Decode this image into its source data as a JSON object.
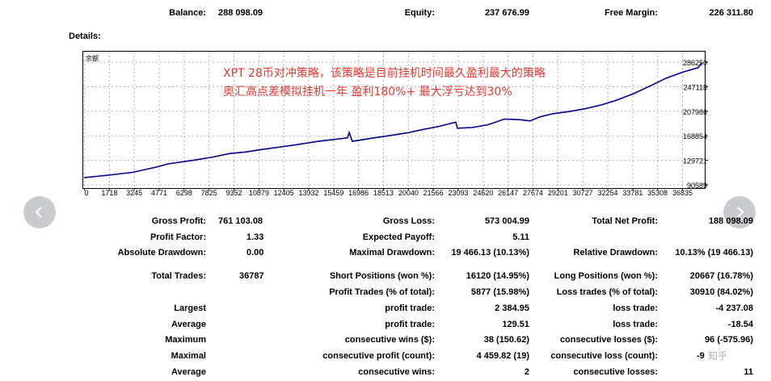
{
  "summary": {
    "balance_label": "Balance:",
    "balance_value": "288 098.09",
    "equity_label": "Equity:",
    "equity_value": "237 676.99",
    "free_margin_label": "Free Margin:",
    "free_margin_value": "226 311.80"
  },
  "details_label": "Details:",
  "chart_data": {
    "type": "line",
    "ylabel": "余额",
    "annotations": [
      "XPT 28币对冲策略，该策略是目前挂机时间最久盈利最大的策略",
      "奥汇高点差模拟挂机一年 盈利180%+ 最大浮亏达到30%"
    ],
    "x_ticks": [
      "0",
      "1718",
      "3245",
      "4771",
      "6298",
      "7825",
      "9352",
      "10879",
      "12405",
      "13932",
      "15459",
      "16986",
      "18513",
      "20040",
      "21566",
      "23093",
      "24620",
      "26147",
      "27674",
      "29201",
      "30727",
      "32254",
      "33781",
      "35308",
      "36835"
    ],
    "y_ticks": [
      "286250",
      "247118",
      "207986",
      "168854",
      "129721",
      "90589"
    ],
    "ylim": [
      90589,
      286250
    ],
    "xlim": [
      0,
      38200
    ],
    "series": [
      {
        "color": "#00008b",
        "points": [
          [
            0,
            102000
          ],
          [
            1500,
            106000
          ],
          [
            3000,
            110500
          ],
          [
            4500,
            119000
          ],
          [
            5200,
            124000
          ],
          [
            6800,
            130000
          ],
          [
            8000,
            135000
          ],
          [
            9000,
            140500
          ],
          [
            10000,
            143000
          ],
          [
            11000,
            147000
          ],
          [
            12000,
            150500
          ],
          [
            13000,
            154000
          ],
          [
            14500,
            160000
          ],
          [
            15500,
            163000
          ],
          [
            16300,
            165500
          ],
          [
            16400,
            174000
          ],
          [
            16600,
            160000
          ],
          [
            17800,
            165000
          ],
          [
            19000,
            169500
          ],
          [
            20000,
            173500
          ],
          [
            21000,
            179000
          ],
          [
            22000,
            184000
          ],
          [
            23000,
            190500
          ],
          [
            23100,
            181000
          ],
          [
            24000,
            182000
          ],
          [
            25000,
            186500
          ],
          [
            26000,
            195500
          ],
          [
            27000,
            194500
          ],
          [
            27600,
            192500
          ],
          [
            28200,
            199000
          ],
          [
            29000,
            204000
          ],
          [
            30000,
            207500
          ],
          [
            31000,
            212000
          ],
          [
            32000,
            218000
          ],
          [
            33000,
            226000
          ],
          [
            34000,
            236000
          ],
          [
            35000,
            248000
          ],
          [
            36000,
            260500
          ],
          [
            37000,
            270000
          ],
          [
            38000,
            277500
          ],
          [
            38200,
            285000
          ]
        ]
      }
    ]
  },
  "stats": {
    "gross_profit": {
      "label": "Gross Profit:",
      "value": "761 103.08"
    },
    "gross_loss": {
      "label": "Gross Loss:",
      "value": "573 004.99"
    },
    "total_net_profit": {
      "label": "Total Net Profit:",
      "value": "188 098.09"
    },
    "profit_factor": {
      "label": "Profit Factor:",
      "value": "1.33"
    },
    "expected_payoff": {
      "label": "Expected Payoff:",
      "value": "5.11"
    },
    "absolute_drawdown": {
      "label": "Absolute Drawdown:",
      "value": "0.00"
    },
    "maximal_drawdown": {
      "label": "Maximal Drawdown:",
      "value": "19 466.13 (10.13%)"
    },
    "relative_drawdown": {
      "label": "Relative Drawdown:",
      "value": "10.13% (19 466.13)"
    },
    "total_trades": {
      "label": "Total Trades:",
      "value": "36787"
    },
    "short_positions": {
      "label": "Short Positions (won %):",
      "value": "16120 (14.95%)"
    },
    "long_positions": {
      "label": "Long Positions (won %):",
      "value": "20667 (16.78%)"
    },
    "profit_trades": {
      "label": "Profit Trades (% of total):",
      "value": "5877 (15.98%)"
    },
    "loss_trades": {
      "label": "Loss trades (% of total):",
      "value": "30910 (84.02%)"
    },
    "largest": {
      "label": "Largest",
      "profit_label": "profit trade:",
      "profit_value": "2 384.95",
      "loss_label": "loss trade:",
      "loss_value": "-4 237.08"
    },
    "average": {
      "label": "Average",
      "profit_label": "profit trade:",
      "profit_value": "129.51",
      "loss_label": "loss trade:",
      "loss_value": "-18.54"
    },
    "maximum": {
      "label": "Maximum",
      "wins_label": "consecutive wins ($):",
      "wins_value": "38 (150.62)",
      "losses_label": "consecutive losses ($):",
      "losses_value": "96 (-575.96)"
    },
    "maximal": {
      "label": "Maximal",
      "profit_label": "consecutive profit (count):",
      "profit_value": "4 459.82 (19)",
      "loss_label": "consecutive loss (count):",
      "loss_value": "-9"
    },
    "average2": {
      "label": "Average",
      "wins_label": "consecutive wins:",
      "wins_value": "2",
      "losses_label": "consecutive losses:",
      "losses_value": "11"
    }
  },
  "nav": {
    "prev_icon": "chevron-left-icon",
    "next_icon": "chevron-right-icon"
  },
  "watermark": "知乎"
}
